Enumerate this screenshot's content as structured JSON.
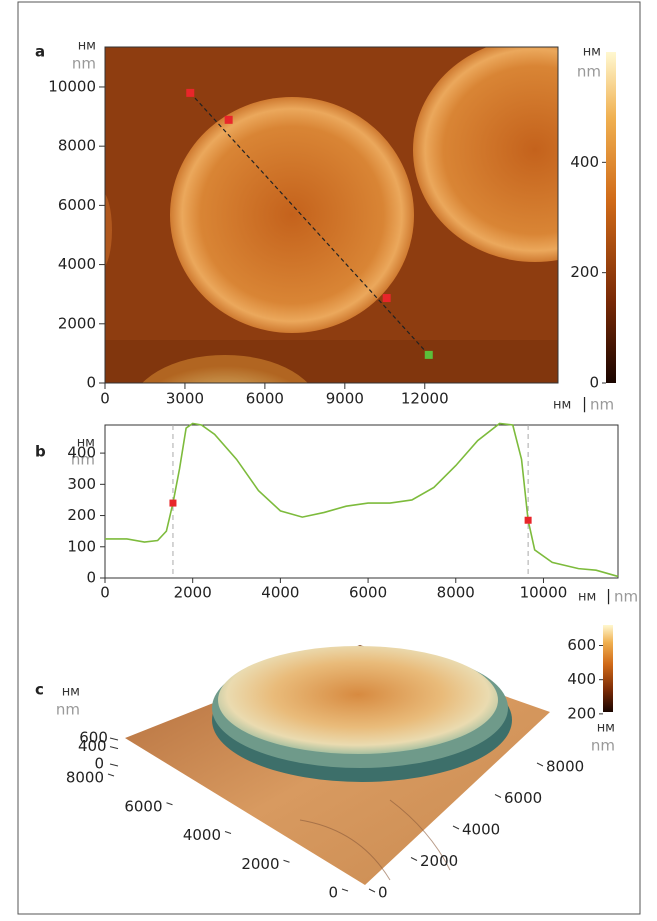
{
  "units": {
    "ru": "нм",
    "en": "nm",
    "sep": "|"
  },
  "chart_data": [
    {
      "type": "heatmap",
      "label": "a",
      "xlim": [
        0,
        17000
      ],
      "xticks": [
        0,
        3000,
        6000,
        9000,
        12000
      ],
      "ylim": [
        0,
        11350
      ],
      "yticks": [
        0,
        2000,
        4000,
        6000,
        8000,
        10000
      ],
      "colorbar": {
        "lim": [
          0,
          600
        ],
        "ticks": [
          0,
          200,
          400
        ]
      },
      "profile_line": {
        "x": [
          3200,
          12150
        ],
        "y": [
          9800,
          950
        ]
      },
      "markers": {
        "x": [
          3200,
          4640,
          10570,
          12150
        ],
        "y": [
          9800,
          8890,
          2870,
          950
        ],
        "colors": [
          "#e8262a",
          "#e8262a",
          "#e8262a",
          "#5bbf3a"
        ]
      }
    },
    {
      "type": "line",
      "label": "b",
      "x": [
        0,
        500,
        900,
        1200,
        1400,
        1550,
        1700,
        1850,
        2000,
        2200,
        2500,
        3000,
        3500,
        4000,
        4500,
        5000,
        5500,
        6000,
        6500,
        7000,
        7500,
        8000,
        8500,
        9000,
        9300,
        9500,
        9650,
        9800,
        10200,
        10800,
        11200,
        11700
      ],
      "series": [
        {
          "color": "#7dbb3c",
          "values": [
            125,
            125,
            115,
            120,
            150,
            240,
            350,
            480,
            495,
            490,
            460,
            380,
            280,
            215,
            195,
            210,
            230,
            240,
            240,
            250,
            290,
            360,
            440,
            495,
            490,
            380,
            185,
            90,
            50,
            30,
            25,
            5
          ]
        }
      ],
      "xlim": [
        0,
        11700
      ],
      "xticks": [
        0,
        2000,
        4000,
        6000,
        8000,
        10000
      ],
      "ylim": [
        0,
        490
      ],
      "yticks": [
        0,
        100,
        200,
        300,
        400
      ],
      "markers": {
        "x": [
          1550,
          9650
        ],
        "values": [
          240,
          185
        ],
        "color": "#e8262a"
      }
    },
    {
      "type": "surface3d",
      "label": "c",
      "zlim": [
        0,
        600
      ],
      "zticks": [
        0,
        400,
        600
      ],
      "xlim": [
        0,
        8000
      ],
      "xticks": [
        0,
        2000,
        4000,
        6000,
        8000
      ],
      "ylim": [
        0,
        8000
      ],
      "yticks": [
        0,
        2000,
        4000,
        6000,
        8000
      ],
      "colorbar": {
        "lim": [
          170,
          720
        ],
        "ticks": [
          200,
          400,
          600
        ]
      }
    }
  ]
}
